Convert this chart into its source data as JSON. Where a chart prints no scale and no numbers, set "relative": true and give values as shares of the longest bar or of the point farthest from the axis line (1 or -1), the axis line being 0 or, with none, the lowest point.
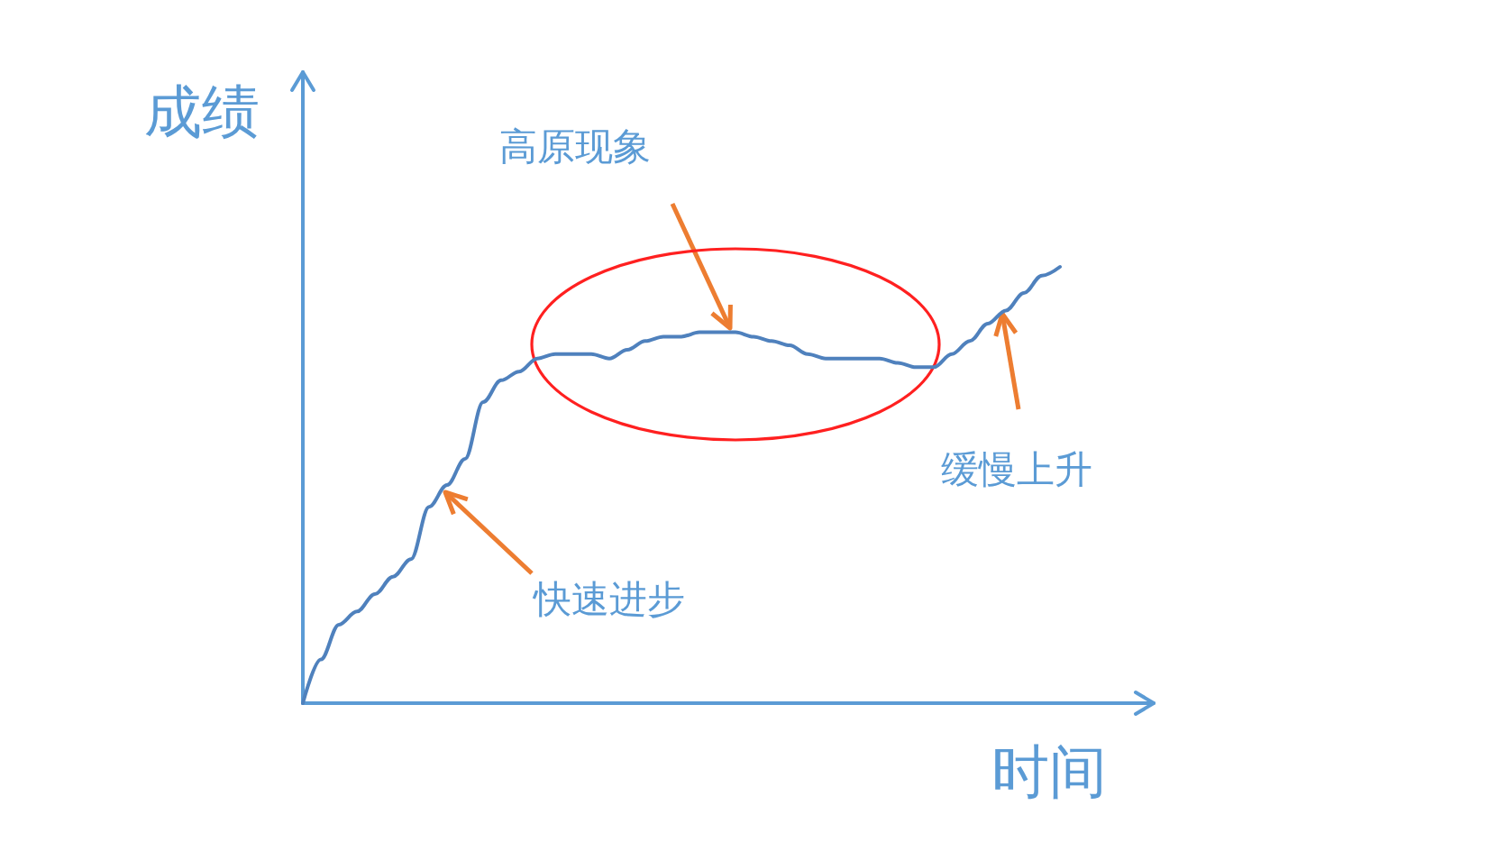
{
  "chart_data": {
    "type": "line",
    "xlabel": "时间",
    "ylabel": "成绩",
    "annotations": [
      "高原现象",
      "快速进步",
      "缓慢上升"
    ],
    "relative": true,
    "categories": [
      null,
      null,
      null,
      null,
      null,
      null,
      null,
      null,
      null,
      null,
      null,
      null,
      null,
      null,
      null,
      null,
      null,
      null,
      null,
      null,
      null,
      null,
      null,
      null,
      null,
      null,
      null,
      null,
      null,
      null,
      null,
      null,
      null,
      null,
      null,
      null,
      null,
      null,
      null,
      null,
      null,
      null,
      null
    ],
    "series": [
      {
        "color": "#4f81bd",
        "values": [
          0,
          0.1,
          0.18,
          0.21,
          0.25,
          0.29,
          0.33,
          0.45,
          0.5,
          0.56,
          0.69,
          0.74,
          0.76,
          0.79,
          0.8,
          0.8,
          0.8,
          0.79,
          0.81,
          0.83,
          0.84,
          0.84,
          0.85,
          0.85,
          0.85,
          0.84,
          0.83,
          0.82,
          0.8,
          0.79,
          0.79,
          0.79,
          0.79,
          0.78,
          0.77,
          0.77,
          0.8,
          0.83,
          0.87,
          0.9,
          0.94,
          0.98,
          1
        ]
      }
    ]
  }
}
